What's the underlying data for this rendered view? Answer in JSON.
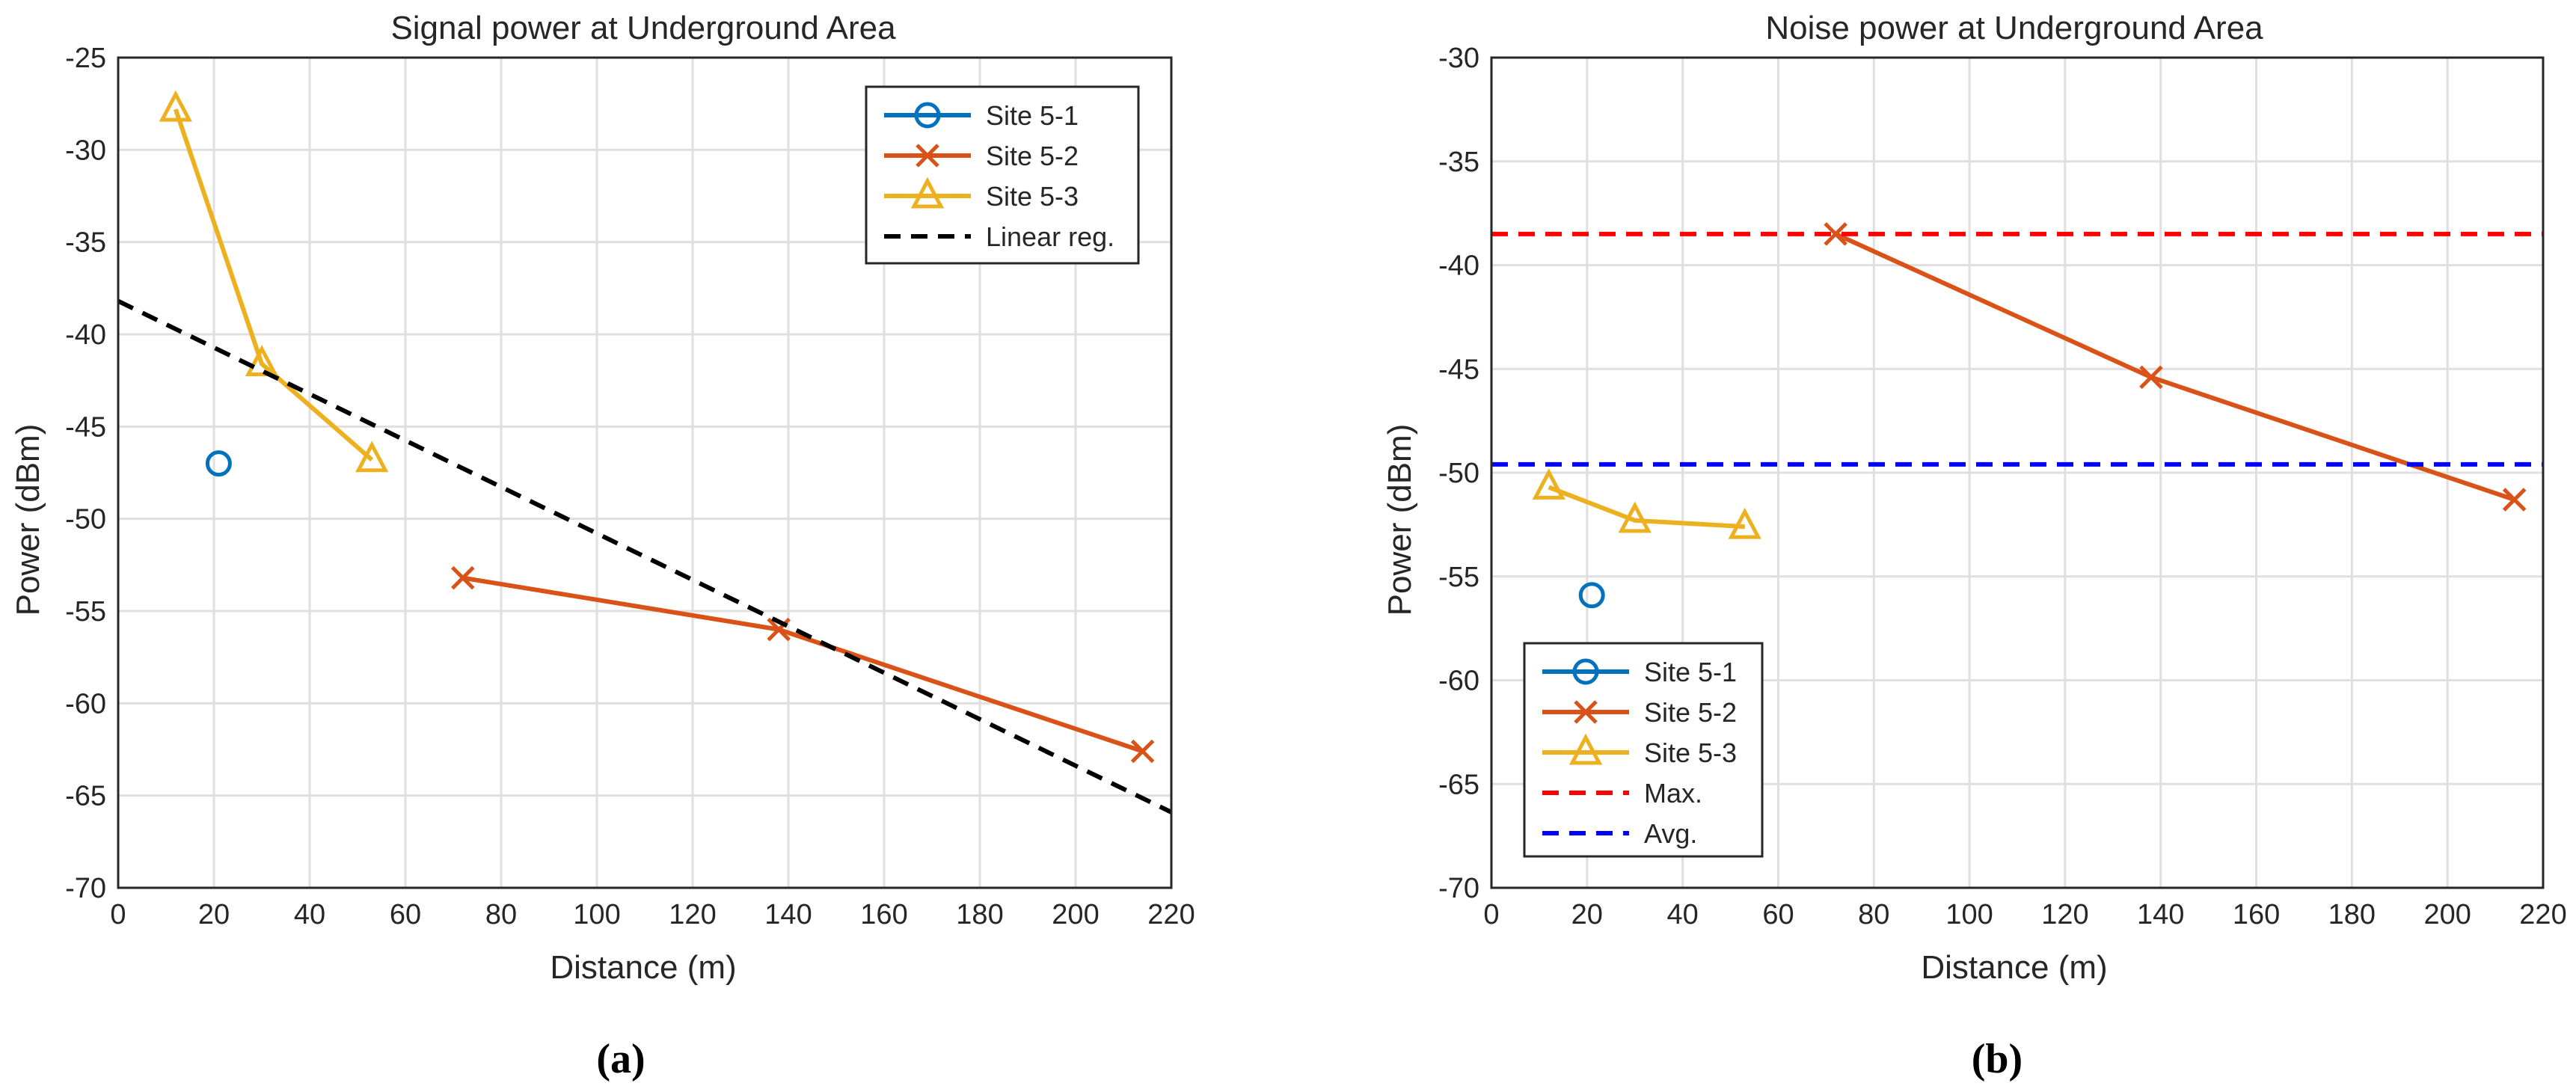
{
  "chart_data": [
    {
      "type": "line",
      "title": "Signal power at Underground Area",
      "xlabel": "Distance (m)",
      "ylabel": "Power (dBm)",
      "xlim": [
        0,
        220
      ],
      "ylim": [
        -70,
        -25
      ],
      "xticks": [
        0,
        20,
        40,
        60,
        80,
        100,
        120,
        140,
        160,
        180,
        200,
        220
      ],
      "yticks": [
        -70,
        -65,
        -60,
        -55,
        -50,
        -45,
        -40,
        -35,
        -30,
        -25
      ],
      "grid": true,
      "legend_position": "top-right",
      "caption": "(a)",
      "series": [
        {
          "name": "Site 5-1",
          "style": "marker-only",
          "marker": "circle",
          "color": "#0072BD",
          "x": [
            21
          ],
          "y": [
            -47
          ]
        },
        {
          "name": "Site 5-2",
          "style": "line",
          "marker": "cross",
          "color": "#D95319",
          "x": [
            72,
            138,
            214
          ],
          "y": [
            -53.2,
            -56,
            -62.6
          ]
        },
        {
          "name": "Site 5-3",
          "style": "line",
          "marker": "triangle",
          "color": "#EDB120",
          "x": [
            12,
            30,
            53
          ],
          "y": [
            -27.8,
            -41.6,
            -46.8
          ]
        },
        {
          "name": "Linear reg.",
          "style": "dashed",
          "marker": "none",
          "color": "#000000",
          "x": [
            0,
            220
          ],
          "y": [
            -38.2,
            -65.9
          ]
        }
      ]
    },
    {
      "type": "line",
      "title": "Noise power at Underground Area",
      "xlabel": "Distance (m)",
      "ylabel": "Power (dBm)",
      "xlim": [
        0,
        220
      ],
      "ylim": [
        -70,
        -30
      ],
      "xticks": [
        0,
        20,
        40,
        60,
        80,
        100,
        120,
        140,
        160,
        180,
        200,
        220
      ],
      "yticks": [
        -70,
        -65,
        -60,
        -55,
        -50,
        -45,
        -40,
        -35,
        -30
      ],
      "grid": true,
      "legend_position": "bottom-left",
      "caption": "(b)",
      "series": [
        {
          "name": "Site 5-1",
          "style": "marker-only",
          "marker": "circle",
          "color": "#0072BD",
          "x": [
            21
          ],
          "y": [
            -55.9
          ]
        },
        {
          "name": "Site 5-2",
          "style": "line",
          "marker": "cross",
          "color": "#D95319",
          "x": [
            72,
            138,
            214
          ],
          "y": [
            -38.5,
            -45.4,
            -51.3
          ]
        },
        {
          "name": "Site 5-3",
          "style": "line",
          "marker": "triangle",
          "color": "#EDB120",
          "x": [
            12,
            30,
            53
          ],
          "y": [
            -50.7,
            -52.3,
            -52.6
          ]
        },
        {
          "name": "Max.",
          "style": "dashed",
          "marker": "none",
          "color": "#FF0000",
          "x": [
            0,
            220
          ],
          "y": [
            -38.5,
            -38.5
          ]
        },
        {
          "name": "Avg.",
          "style": "dashed",
          "marker": "none",
          "color": "#0000FF",
          "x": [
            0,
            220
          ],
          "y": [
            -49.6,
            -49.6
          ]
        }
      ]
    }
  ]
}
